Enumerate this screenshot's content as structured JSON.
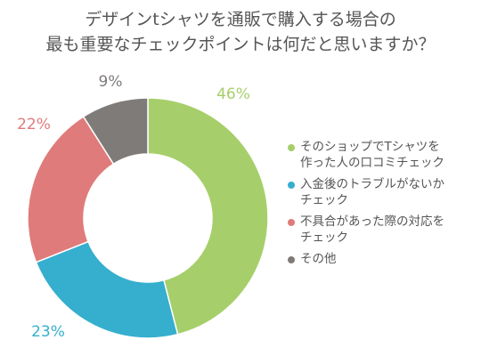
{
  "colors": {
    "s1": "#a6cf6b",
    "s2": "#36aece",
    "s3": "#e07b7b",
    "s4": "#7f7b79"
  },
  "chart_data": {
    "type": "pie",
    "style": "donut",
    "title_lines": [
      "デザインtシャツを通販で購入する場合の",
      "最も重要なチェックポイントは何だと思いますか？"
    ],
    "labels": [
      [
        "そのショップでTシャツを",
        "作った人の口コミチェック"
      ],
      [
        "入金後のトラブルがないか",
        "チェック"
      ],
      [
        "不具合があった際の対応を",
        "チェック"
      ],
      [
        "その他"
      ]
    ],
    "values": [
      46,
      23,
      22,
      9
    ],
    "percent_labels": [
      "46%",
      "23%",
      "22%",
      "9%"
    ],
    "legend_position": "right"
  }
}
